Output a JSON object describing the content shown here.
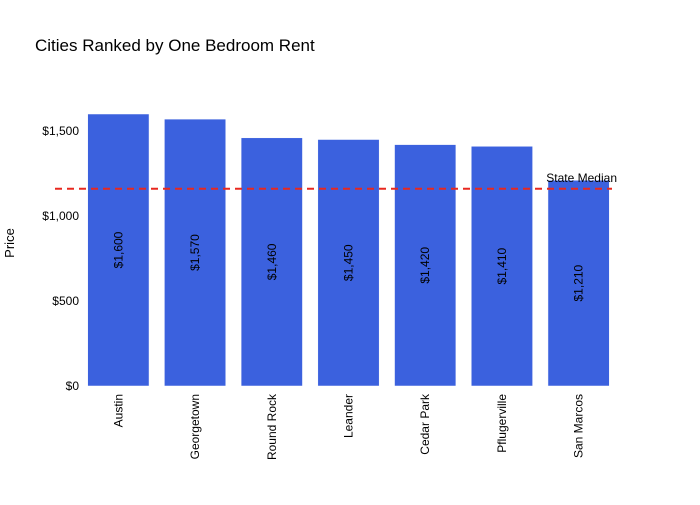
{
  "chart_data": {
    "type": "bar",
    "title": "Cities Ranked by One Bedroom Rent",
    "xlabel": "",
    "ylabel": "Price",
    "categories": [
      "Austin",
      "Georgetown",
      "Round Rock",
      "Leander",
      "Cedar Park",
      "Pflugerville",
      "San Marcos"
    ],
    "values": [
      1600,
      1570,
      1460,
      1450,
      1420,
      1410,
      1210
    ],
    "data_labels": [
      "$1,600",
      "$1,570",
      "$1,460",
      "$1,450",
      "$1,420",
      "$1,410",
      "$1,210"
    ],
    "ylim": [
      0,
      1600
    ],
    "yticks": [
      0,
      500,
      1000,
      1500
    ],
    "ytick_labels": [
      "$0",
      "$500",
      "$1,000",
      "$1,500"
    ],
    "grid": false,
    "reference_line": {
      "label": "State Median",
      "value": 1160,
      "style": "dashed"
    },
    "colors": {
      "bar": "#3b61de",
      "bar_edge": "#ffffff",
      "reference_line": "#e8281e"
    }
  }
}
